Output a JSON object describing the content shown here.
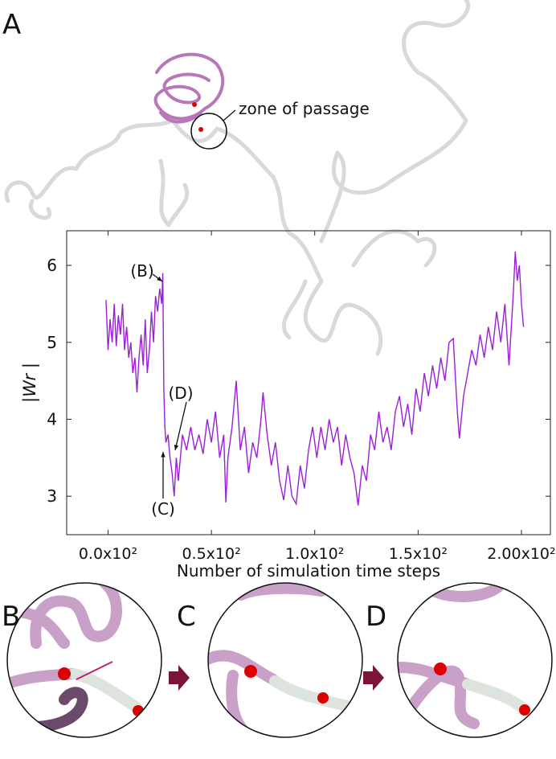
{
  "panel_labels": [
    "A",
    "B",
    "C",
    "D"
  ],
  "callout": "zone of passage",
  "chart_data": {
    "type": "line",
    "xlabel": "Number of simulation time steps",
    "ylabel": "|Wr |",
    "annotations": [
      "(B)",
      "(C)",
      "(D)"
    ],
    "xlim": [
      -20,
      214
    ],
    "ylim": [
      2.5,
      6.45
    ],
    "xticks": [
      {
        "value": 0,
        "label": "0.0x10²"
      },
      {
        "value": 50,
        "label": "0.5x10²"
      },
      {
        "value": 100,
        "label": "1.0x10²"
      },
      {
        "value": 150,
        "label": "1.5x10²"
      },
      {
        "value": 200,
        "label": "2.00x10²"
      }
    ],
    "yticks": [
      3,
      4,
      5,
      6
    ],
    "x": [
      -1,
      0,
      1,
      2,
      3,
      4,
      5,
      6,
      7,
      8,
      9,
      10,
      11,
      12,
      13,
      14,
      15,
      16,
      17,
      18,
      19,
      20,
      21,
      22,
      23,
      24,
      25,
      26,
      26.5,
      27,
      27.5,
      28,
      29,
      30,
      31,
      32,
      33,
      34,
      36,
      38,
      40,
      42,
      44,
      46,
      48,
      50,
      52,
      54,
      56,
      57,
      58,
      60,
      62,
      64,
      66,
      68,
      70,
      72,
      74,
      75,
      77,
      79,
      81,
      83,
      85,
      87,
      89,
      91,
      93,
      95,
      97,
      99,
      101,
      103,
      105,
      107,
      109,
      111,
      113,
      115,
      117,
      119,
      121,
      123,
      125,
      127,
      129,
      131,
      133,
      135,
      137,
      139,
      141,
      143,
      145,
      147,
      149,
      151,
      153,
      155,
      157,
      159,
      161,
      163,
      165,
      167,
      169,
      170,
      172,
      174,
      176,
      178,
      180,
      182,
      184,
      186,
      188,
      190,
      192,
      194,
      196,
      197,
      198,
      199,
      200,
      201
    ],
    "series": [
      {
        "color": "#9b1fd6",
        "values": [
          5.55,
          4.9,
          5.3,
          5.0,
          5.5,
          4.95,
          5.35,
          5.1,
          5.5,
          4.9,
          5.2,
          4.8,
          5.0,
          4.6,
          4.8,
          4.35,
          4.8,
          5.1,
          4.7,
          5.3,
          4.6,
          4.9,
          5.4,
          5.0,
          5.6,
          5.4,
          5.7,
          5.5,
          5.9,
          4.4,
          3.9,
          3.7,
          3.8,
          3.5,
          3.3,
          3.0,
          3.5,
          3.2,
          3.8,
          3.6,
          3.9,
          3.6,
          3.8,
          3.55,
          4.0,
          3.7,
          4.1,
          3.5,
          3.8,
          2.92,
          3.5,
          3.9,
          4.5,
          3.6,
          3.9,
          3.3,
          3.7,
          3.5,
          4.0,
          4.35,
          3.8,
          3.4,
          3.7,
          3.2,
          2.95,
          3.4,
          3.0,
          2.9,
          3.4,
          3.1,
          3.6,
          3.9,
          3.5,
          3.9,
          3.6,
          4.0,
          3.7,
          3.9,
          3.4,
          3.8,
          3.5,
          3.3,
          2.88,
          3.4,
          3.2,
          3.8,
          3.6,
          4.1,
          3.7,
          3.9,
          3.6,
          4.1,
          4.3,
          3.9,
          4.2,
          3.8,
          4.4,
          4.1,
          4.6,
          4.3,
          4.7,
          4.4,
          4.8,
          4.5,
          5.0,
          5.05,
          4.1,
          3.75,
          4.3,
          4.6,
          4.9,
          4.7,
          5.1,
          4.8,
          5.2,
          4.9,
          5.4,
          5.0,
          5.5,
          4.7,
          5.6,
          6.18,
          5.8,
          6.0,
          5.5,
          5.2
        ]
      }
    ]
  }
}
